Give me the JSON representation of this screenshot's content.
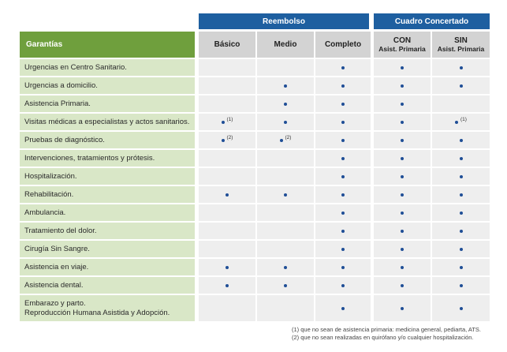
{
  "groups": {
    "reembolso": "Reembolso",
    "concertado": "Cuadro Concertado"
  },
  "columns": {
    "garantias": "Garantías",
    "basico": "Básico",
    "medio": "Medio",
    "completo": "Completo",
    "con_main": "CON",
    "con_sub": "Asist. Primaria",
    "sin_main": "SIN",
    "sin_sub": "Asist. Primaria"
  },
  "rows": [
    {
      "label": "Urgencias en Centro Sanitario.",
      "marks": [
        "",
        "",
        "•",
        "•",
        "•"
      ],
      "notes": [
        "",
        "",
        "",
        "",
        ""
      ]
    },
    {
      "label": "Urgencias a domicilio.",
      "marks": [
        "",
        "•",
        "•",
        "•",
        "•"
      ],
      "notes": [
        "",
        "",
        "",
        "",
        ""
      ]
    },
    {
      "label": "Asistencia Primaria.",
      "marks": [
        "",
        "•",
        "•",
        "•",
        ""
      ],
      "notes": [
        "",
        "",
        "",
        "",
        ""
      ]
    },
    {
      "label": "Visitas médicas a especialistas  y actos sanitarios.",
      "marks": [
        "•",
        "•",
        "•",
        "•",
        "•"
      ],
      "notes": [
        "(1)",
        "",
        "",
        "",
        "(1)"
      ]
    },
    {
      "label": "Pruebas de diagnóstico.",
      "marks": [
        "•",
        "•",
        "•",
        "•",
        "•"
      ],
      "notes": [
        "(2)",
        "(2)",
        "",
        "",
        ""
      ]
    },
    {
      "label": "Intervenciones, tratamientos y prótesis.",
      "marks": [
        "",
        "",
        "•",
        "•",
        "•"
      ],
      "notes": [
        "",
        "",
        "",
        "",
        ""
      ]
    },
    {
      "label": "Hospitalización.",
      "marks": [
        "",
        "",
        "•",
        "•",
        "•"
      ],
      "notes": [
        "",
        "",
        "",
        "",
        ""
      ]
    },
    {
      "label": "Rehabilitación.",
      "marks": [
        "•",
        "•",
        "•",
        "•",
        "•"
      ],
      "notes": [
        "",
        "",
        "",
        "",
        ""
      ]
    },
    {
      "label": "Ambulancia.",
      "marks": [
        "",
        "",
        "•",
        "•",
        "•"
      ],
      "notes": [
        "",
        "",
        "",
        "",
        ""
      ]
    },
    {
      "label": "Tratamiento del dolor.",
      "marks": [
        "",
        "",
        "•",
        "•",
        "•"
      ],
      "notes": [
        "",
        "",
        "",
        "",
        ""
      ]
    },
    {
      "label": "Cirugía Sin Sangre.",
      "marks": [
        "",
        "",
        "•",
        "•",
        "•"
      ],
      "notes": [
        "",
        "",
        "",
        "",
        ""
      ]
    },
    {
      "label": "Asistencia en viaje.",
      "marks": [
        "•",
        "•",
        "•",
        "•",
        "•"
      ],
      "notes": [
        "",
        "",
        "",
        "",
        ""
      ]
    },
    {
      "label": "Asistencia dental.",
      "marks": [
        "•",
        "•",
        "•",
        "•",
        "•"
      ],
      "notes": [
        "",
        "",
        "",
        "",
        ""
      ]
    },
    {
      "label": "Embarazo y parto.",
      "label2": "Reproducción Humana Asistida y Adopción.",
      "marks": [
        "",
        "",
        "•",
        "•",
        "•"
      ],
      "notes": [
        "",
        "",
        "",
        "",
        ""
      ]
    }
  ],
  "footnotes": [
    "(1)  que no sean de asistencia primaria: medicina general, pediarta, ATS.",
    "(2)  que no sean realizadas en quirófano y/o cualquier hospitalización."
  ]
}
